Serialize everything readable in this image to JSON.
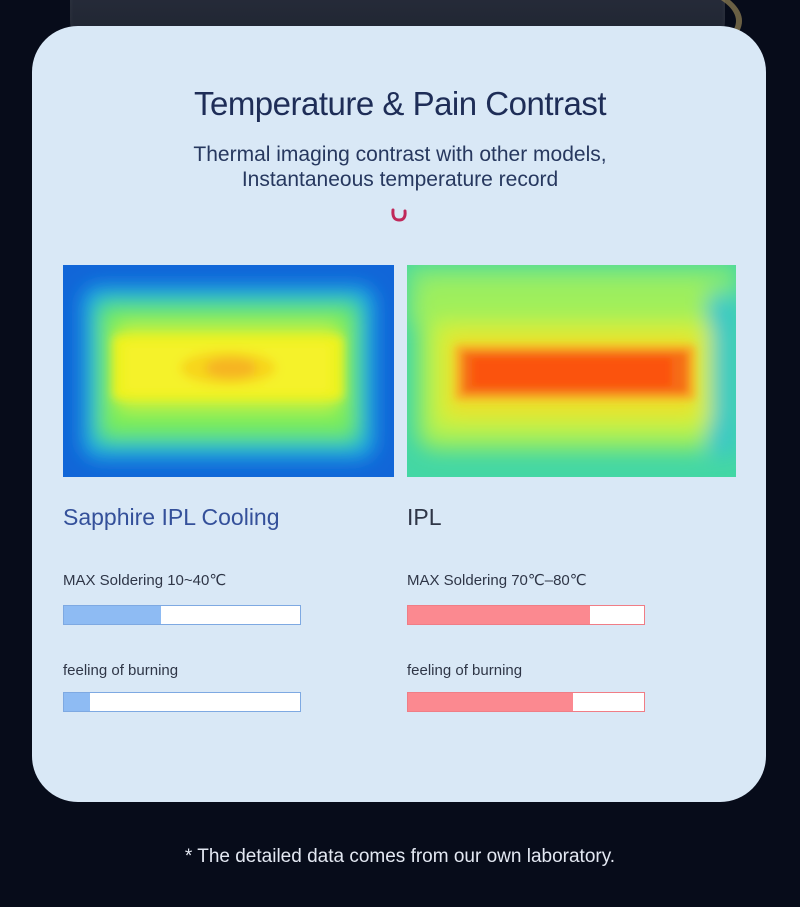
{
  "header": {
    "title": "Temperature & Pain Contrast",
    "subtitle_line1": "Thermal imaging contrast with other models,",
    "subtitle_line2": "Instantaneous temperature record"
  },
  "comparison": [
    {
      "model": "Sapphire IPL Cooling",
      "image": "thermal-image-cool",
      "accent_color": "#8ebbf3",
      "metrics": [
        {
          "label": "MAX Soldering 10~40℃",
          "level": 0.41
        },
        {
          "label": "feeling of burning",
          "level": 0.11
        }
      ]
    },
    {
      "model": "IPL",
      "image": "thermal-image-hot",
      "accent_color": "#fb8990",
      "metrics": [
        {
          "label": "MAX Soldering 70℃–80℃",
          "level": 0.77
        },
        {
          "label": "feeling of burning",
          "level": 0.7
        }
      ]
    }
  ],
  "footnote": "* The detailed data comes from our own laboratory."
}
